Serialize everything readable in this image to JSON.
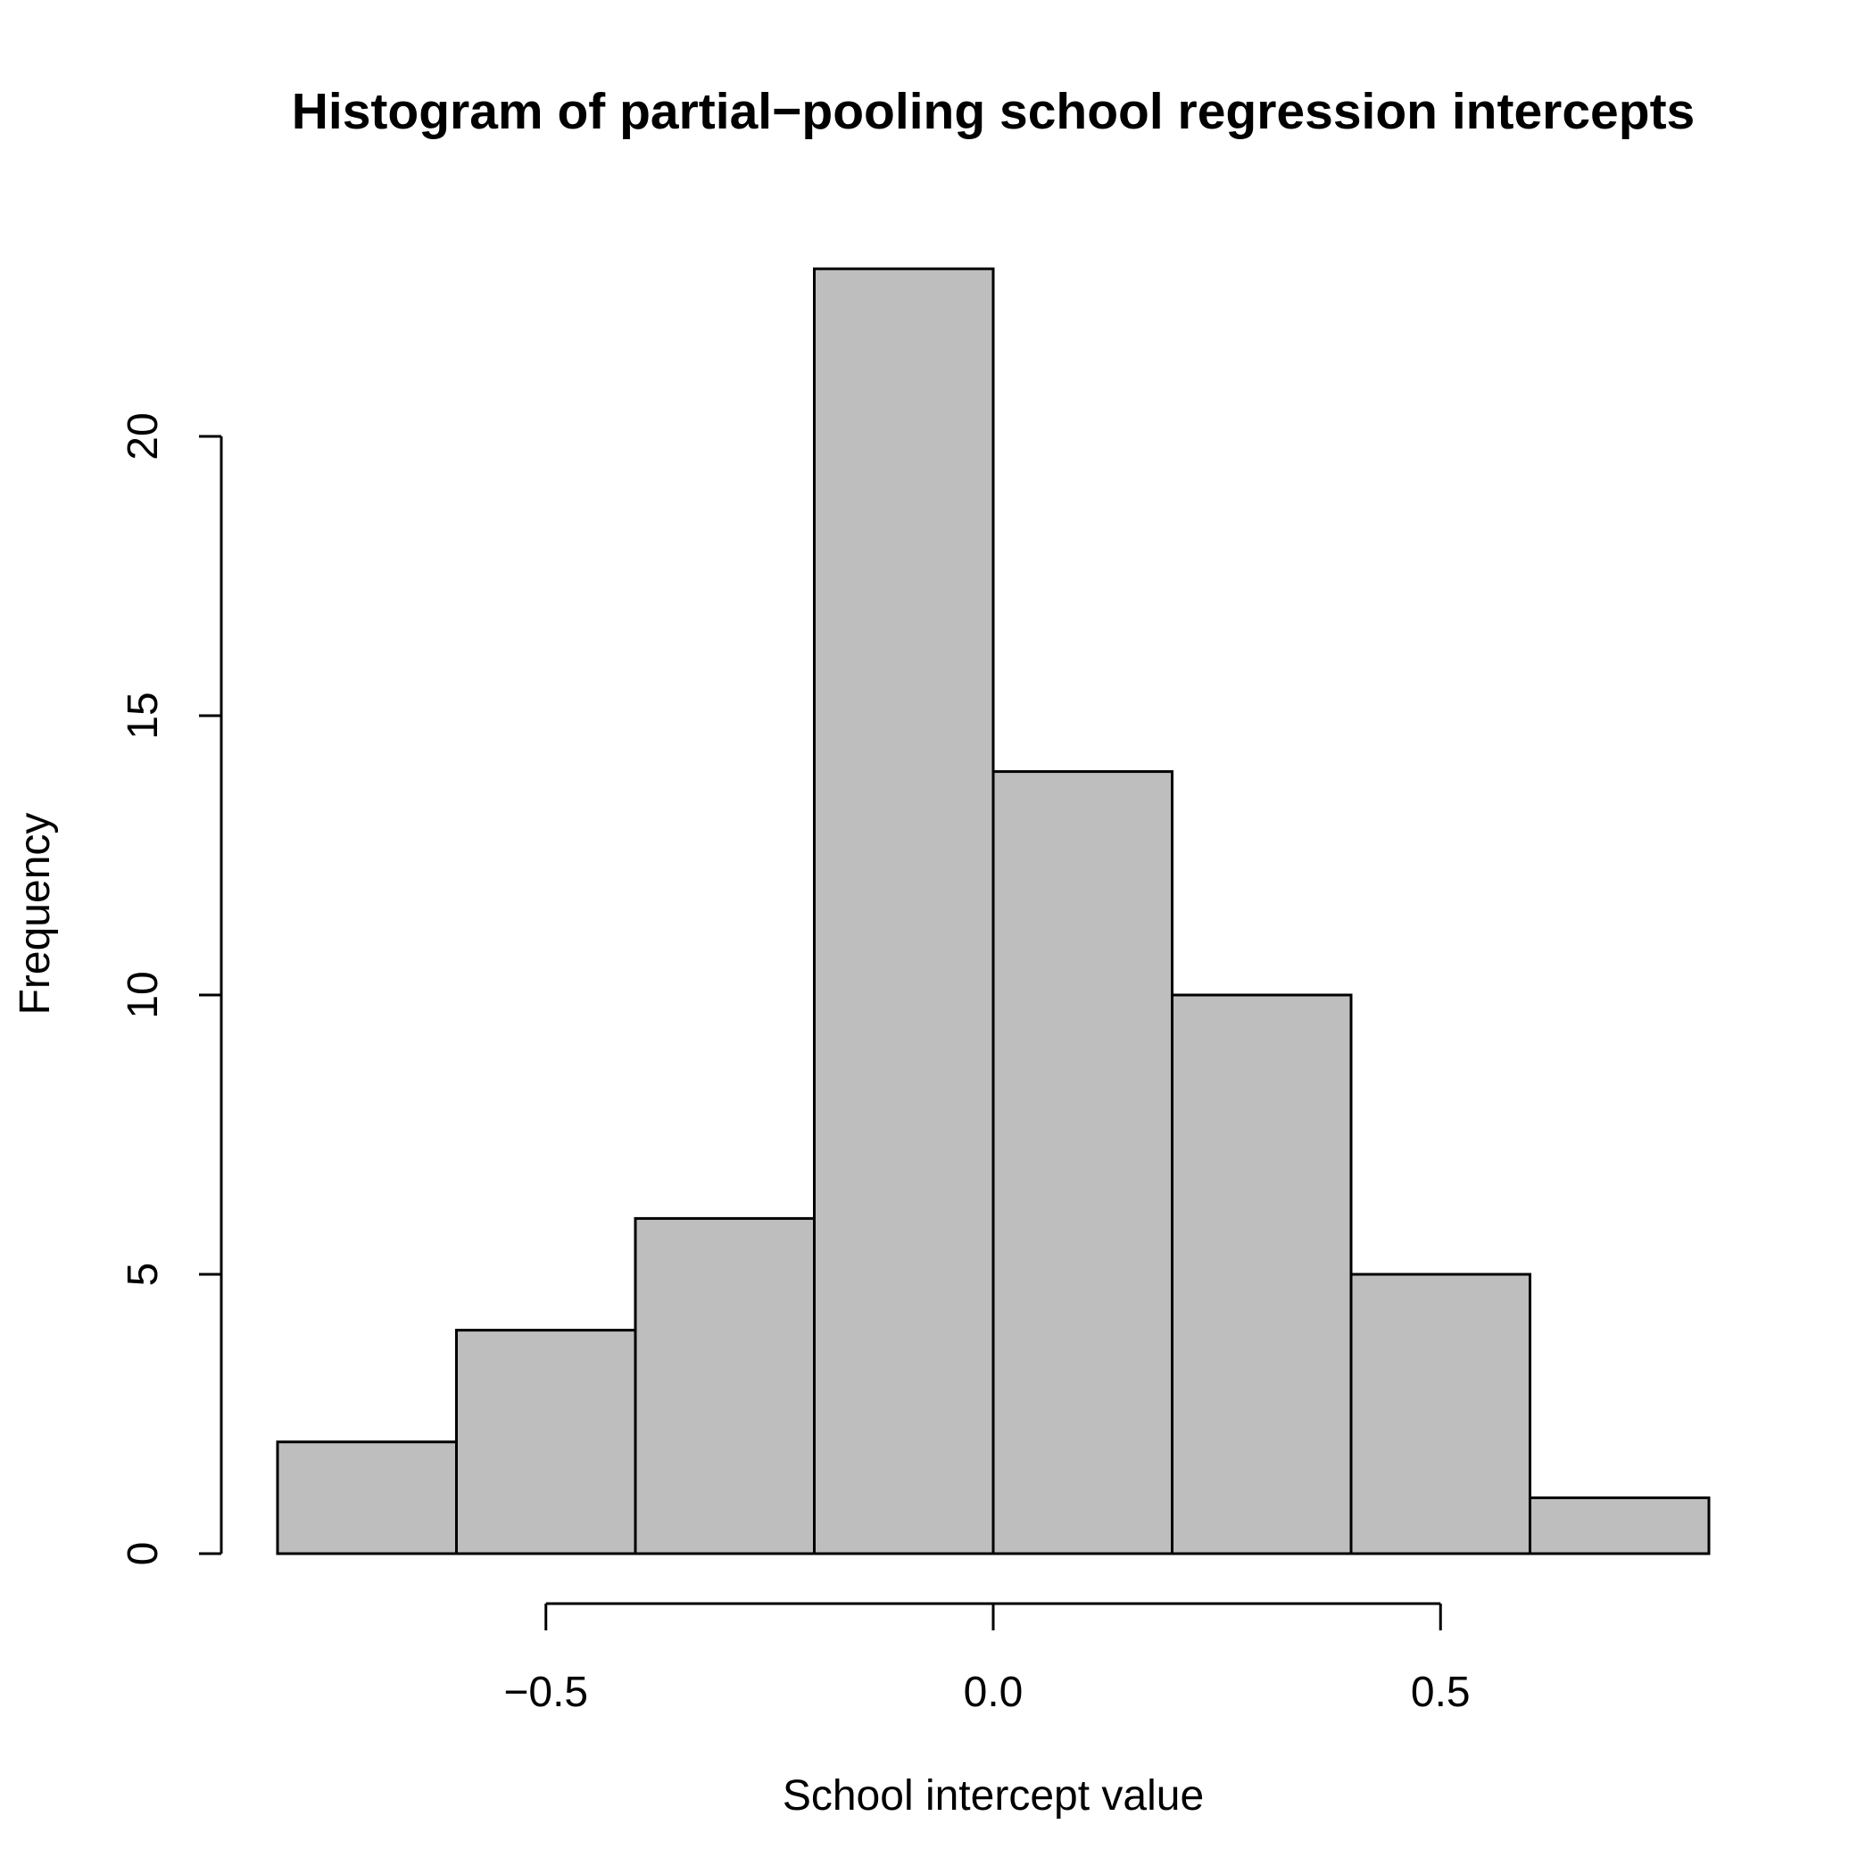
{
  "chart_data": {
    "type": "bar",
    "subtype": "histogram",
    "title": "Histogram of partial−pooling school regression intercepts",
    "xlabel": "School intercept value",
    "ylabel": "Frequency",
    "bins": [
      {
        "from": -0.8,
        "to": -0.6,
        "count": 2
      },
      {
        "from": -0.6,
        "to": -0.4,
        "count": 4
      },
      {
        "from": -0.4,
        "to": -0.2,
        "count": 6
      },
      {
        "from": -0.2,
        "to": 0.0,
        "count": 23
      },
      {
        "from": 0.0,
        "to": 0.2,
        "count": 14
      },
      {
        "from": 0.2,
        "to": 0.4,
        "count": 10
      },
      {
        "from": 0.4,
        "to": 0.6,
        "count": 5
      },
      {
        "from": 0.6,
        "to": 0.8,
        "count": 1
      }
    ],
    "x_ticks": [
      {
        "value": -0.5,
        "label": "−0.5"
      },
      {
        "value": 0.0,
        "label": "0.0"
      },
      {
        "value": 0.5,
        "label": "0.5"
      }
    ],
    "y_ticks": [
      {
        "value": 0,
        "label": "0"
      },
      {
        "value": 5,
        "label": "5"
      },
      {
        "value": 10,
        "label": "10"
      },
      {
        "value": 15,
        "label": "15"
      },
      {
        "value": 20,
        "label": "20"
      }
    ],
    "xlim": [
      -0.8,
      0.8
    ],
    "ylim": [
      0,
      23
    ],
    "bar_fill": "#bebebe",
    "bar_stroke": "#000000",
    "grid": false,
    "legend": "none"
  }
}
